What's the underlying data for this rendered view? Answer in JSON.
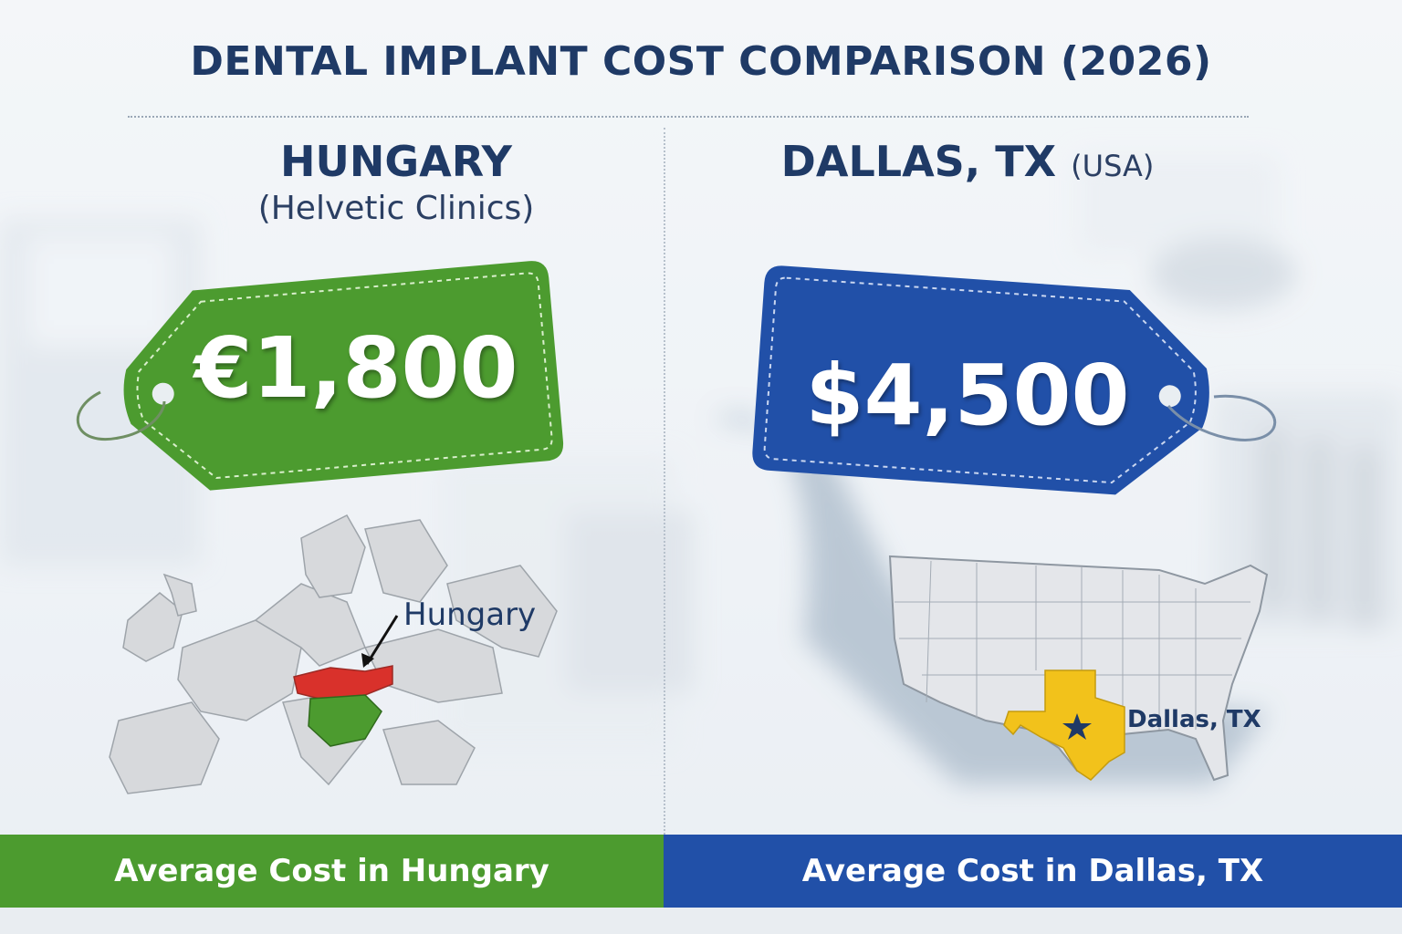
{
  "title": "DENTAL IMPLANT COST COMPARISON (2026)",
  "left": {
    "region": "HUNGARY",
    "clinic": "(Helvetic Clinics)",
    "price": "€1,800",
    "tag_color": "#4c9b2f",
    "map_label": "Hungary",
    "highlight_colors": {
      "north": "#d9312b",
      "south": "#4c9b2f"
    },
    "footer": "Average Cost in Hungary"
  },
  "right": {
    "region": "DALLAS, TX",
    "country": "(USA)",
    "price": "$4,500",
    "tag_color": "#2150a8",
    "map_label": "Dallas, TX",
    "highlight_color": "#f2c21b",
    "marker_icon": "star-icon",
    "footer": "Average Cost in Dallas, TX"
  }
}
